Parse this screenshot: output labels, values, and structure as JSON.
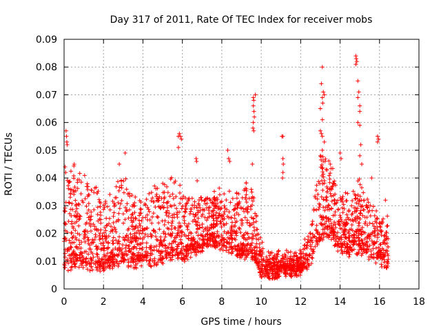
{
  "chart_data": {
    "type": "scatter",
    "title": "Day 317 of 2011, Rate Of TEC Index for receiver mobs",
    "xlabel": "GPS time / hours",
    "ylabel": "ROTI / TECUs",
    "xlim": [
      0,
      18
    ],
    "ylim": [
      0,
      0.09
    ],
    "xticks": [
      "0",
      "2",
      "4",
      "6",
      "8",
      "10",
      "12",
      "14",
      "16",
      "18"
    ],
    "yticks": [
      "0",
      "0.01",
      "0.02",
      "0.03",
      "0.04",
      "0.05",
      "0.06",
      "0.07",
      "0.08",
      "0.09"
    ],
    "grid": true,
    "marker": "+",
    "series_color": "#ff0000",
    "series": [
      {
        "name": "ROTI",
        "profile": [
          {
            "x": 0.0,
            "base": 0.01,
            "spread": 0.02
          },
          {
            "x": 0.5,
            "base": 0.011,
            "spread": 0.022
          },
          {
            "x": 1.0,
            "base": 0.011,
            "spread": 0.02
          },
          {
            "x": 1.5,
            "base": 0.01,
            "spread": 0.018
          },
          {
            "x": 2.0,
            "base": 0.01,
            "spread": 0.016
          },
          {
            "x": 2.5,
            "base": 0.011,
            "spread": 0.016
          },
          {
            "x": 3.0,
            "base": 0.012,
            "spread": 0.02
          },
          {
            "x": 3.5,
            "base": 0.011,
            "spread": 0.016
          },
          {
            "x": 4.0,
            "base": 0.012,
            "spread": 0.016
          },
          {
            "x": 4.5,
            "base": 0.012,
            "spread": 0.018
          },
          {
            "x": 5.0,
            "base": 0.013,
            "spread": 0.016
          },
          {
            "x": 5.5,
            "base": 0.014,
            "spread": 0.018
          },
          {
            "x": 6.0,
            "base": 0.013,
            "spread": 0.016
          },
          {
            "x": 6.5,
            "base": 0.015,
            "spread": 0.012
          },
          {
            "x": 7.0,
            "base": 0.017,
            "spread": 0.012
          },
          {
            "x": 7.5,
            "base": 0.018,
            "spread": 0.012
          },
          {
            "x": 8.0,
            "base": 0.018,
            "spread": 0.012
          },
          {
            "x": 8.5,
            "base": 0.016,
            "spread": 0.014
          },
          {
            "x": 9.0,
            "base": 0.014,
            "spread": 0.016
          },
          {
            "x": 9.5,
            "base": 0.015,
            "spread": 0.016
          },
          {
            "x": 10.0,
            "base": 0.008,
            "spread": 0.006
          },
          {
            "x": 10.5,
            "base": 0.007,
            "spread": 0.004
          },
          {
            "x": 11.0,
            "base": 0.008,
            "spread": 0.004
          },
          {
            "x": 11.5,
            "base": 0.008,
            "spread": 0.004
          },
          {
            "x": 12.0,
            "base": 0.009,
            "spread": 0.004
          },
          {
            "x": 12.5,
            "base": 0.012,
            "spread": 0.008
          },
          {
            "x": 13.0,
            "base": 0.02,
            "spread": 0.02
          },
          {
            "x": 13.5,
            "base": 0.022,
            "spread": 0.016
          },
          {
            "x": 14.0,
            "base": 0.016,
            "spread": 0.014
          },
          {
            "x": 14.5,
            "base": 0.015,
            "spread": 0.012
          },
          {
            "x": 15.0,
            "base": 0.016,
            "spread": 0.016
          },
          {
            "x": 15.5,
            "base": 0.014,
            "spread": 0.012
          },
          {
            "x": 16.0,
            "base": 0.012,
            "spread": 0.01
          },
          {
            "x": 16.45,
            "base": 0.011,
            "spread": 0.012
          }
        ],
        "spikes": [
          {
            "x": 0.1,
            "y": 0.057
          },
          {
            "x": 0.12,
            "y": 0.055
          },
          {
            "x": 0.14,
            "y": 0.053
          },
          {
            "x": 0.16,
            "y": 0.052
          },
          {
            "x": 0.05,
            "y": 0.044
          },
          {
            "x": 0.08,
            "y": 0.042
          },
          {
            "x": 2.8,
            "y": 0.045
          },
          {
            "x": 3.1,
            "y": 0.049
          },
          {
            "x": 5.8,
            "y": 0.055
          },
          {
            "x": 5.85,
            "y": 0.056
          },
          {
            "x": 5.9,
            "y": 0.055
          },
          {
            "x": 5.95,
            "y": 0.054
          },
          {
            "x": 5.8,
            "y": 0.051
          },
          {
            "x": 6.7,
            "y": 0.047
          },
          {
            "x": 6.72,
            "y": 0.046
          },
          {
            "x": 6.75,
            "y": 0.039
          },
          {
            "x": 8.3,
            "y": 0.05
          },
          {
            "x": 8.35,
            "y": 0.047
          },
          {
            "x": 8.4,
            "y": 0.046
          },
          {
            "x": 9.6,
            "y": 0.069
          },
          {
            "x": 9.62,
            "y": 0.068
          },
          {
            "x": 9.6,
            "y": 0.066
          },
          {
            "x": 9.63,
            "y": 0.064
          },
          {
            "x": 9.65,
            "y": 0.062
          },
          {
            "x": 9.6,
            "y": 0.06
          },
          {
            "x": 9.7,
            "y": 0.07
          },
          {
            "x": 9.58,
            "y": 0.058
          },
          {
            "x": 9.62,
            "y": 0.057
          },
          {
            "x": 9.55,
            "y": 0.045
          },
          {
            "x": 11.05,
            "y": 0.055
          },
          {
            "x": 11.1,
            "y": 0.055
          },
          {
            "x": 11.1,
            "y": 0.047
          },
          {
            "x": 11.12,
            "y": 0.045
          },
          {
            "x": 11.1,
            "y": 0.042
          },
          {
            "x": 11.08,
            "y": 0.04
          },
          {
            "x": 13.1,
            "y": 0.08
          },
          {
            "x": 13.05,
            "y": 0.074
          },
          {
            "x": 13.15,
            "y": 0.071
          },
          {
            "x": 13.2,
            "y": 0.07
          },
          {
            "x": 13.1,
            "y": 0.069
          },
          {
            "x": 13.12,
            "y": 0.067
          },
          {
            "x": 13.0,
            "y": 0.065
          },
          {
            "x": 13.1,
            "y": 0.061
          },
          {
            "x": 13.0,
            "y": 0.057
          },
          {
            "x": 13.05,
            "y": 0.056
          },
          {
            "x": 13.1,
            "y": 0.055
          },
          {
            "x": 13.2,
            "y": 0.053
          },
          {
            "x": 13.1,
            "y": 0.05
          },
          {
            "x": 13.0,
            "y": 0.048
          },
          {
            "x": 13.15,
            "y": 0.046
          },
          {
            "x": 14.8,
            "y": 0.084
          },
          {
            "x": 14.82,
            "y": 0.083
          },
          {
            "x": 14.85,
            "y": 0.082
          },
          {
            "x": 14.8,
            "y": 0.081
          },
          {
            "x": 14.9,
            "y": 0.075
          },
          {
            "x": 14.95,
            "y": 0.071
          },
          {
            "x": 14.9,
            "y": 0.069
          },
          {
            "x": 15.0,
            "y": 0.066
          },
          {
            "x": 15.0,
            "y": 0.064
          },
          {
            "x": 14.9,
            "y": 0.06
          },
          {
            "x": 15.0,
            "y": 0.059
          },
          {
            "x": 15.05,
            "y": 0.052
          },
          {
            "x": 15.0,
            "y": 0.048
          },
          {
            "x": 15.1,
            "y": 0.045
          },
          {
            "x": 15.9,
            "y": 0.055
          },
          {
            "x": 15.95,
            "y": 0.054
          },
          {
            "x": 15.9,
            "y": 0.053
          },
          {
            "x": 14.0,
            "y": 0.049
          },
          {
            "x": 14.05,
            "y": 0.047
          },
          {
            "x": 13.5,
            "y": 0.045
          },
          {
            "x": 15.6,
            "y": 0.04
          },
          {
            "x": 16.3,
            "y": 0.032
          }
        ]
      }
    ]
  }
}
